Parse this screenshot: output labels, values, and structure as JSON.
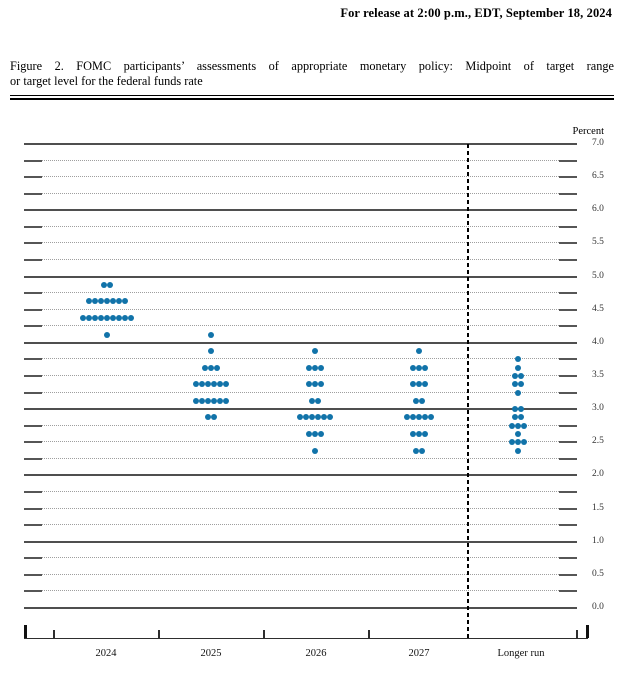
{
  "release_line": "For release at 2:00 p.m., EDT, September 18, 2024",
  "figure_caption": {
    "line1": "Figure 2.  FOMC participants’ assessments of appropriate monetary policy:  Midpoint of target range",
    "line2": "or target level for the federal funds rate"
  },
  "chart_data": {
    "type": "scatter",
    "subtype": "fomc-dot-plot",
    "title": "FOMC participants’ assessments of appropriate monetary policy: Midpoint of target range or target level for the federal funds rate",
    "ylabel": "Percent",
    "ylim": [
      0.0,
      7.0
    ],
    "y_minor_step": 0.25,
    "y_major_step": 1.0,
    "y_label_step": 0.5,
    "y_tick_labels": [
      "7.0",
      "6.5",
      "6.0",
      "5.5",
      "5.0",
      "4.5",
      "4.0",
      "3.5",
      "3.0",
      "2.5",
      "2.0",
      "1.5",
      "1.0",
      "0.5",
      "0.0"
    ],
    "grid": true,
    "legend": "none",
    "dot_color": "#1173a9",
    "categories": [
      "2024",
      "2025",
      "2026",
      "2027",
      "Longer run"
    ],
    "separator_before_category": "Longer run",
    "series": [
      {
        "name": "2024",
        "dots": [
          {
            "value": 4.875,
            "count": 2
          },
          {
            "value": 4.625,
            "count": 7
          },
          {
            "value": 4.375,
            "count": 9
          },
          {
            "value": 4.125,
            "count": 1
          }
        ]
      },
      {
        "name": "2025",
        "dots": [
          {
            "value": 4.125,
            "count": 1
          },
          {
            "value": 3.875,
            "count": 1
          },
          {
            "value": 3.625,
            "count": 3
          },
          {
            "value": 3.375,
            "count": 6
          },
          {
            "value": 3.125,
            "count": 6
          },
          {
            "value": 2.875,
            "count": 2
          }
        ]
      },
      {
        "name": "2026",
        "dots": [
          {
            "value": 3.875,
            "count": 1
          },
          {
            "value": 3.625,
            "count": 3
          },
          {
            "value": 3.375,
            "count": 3
          },
          {
            "value": 3.125,
            "count": 2
          },
          {
            "value": 2.875,
            "count": 6
          },
          {
            "value": 2.625,
            "count": 3
          },
          {
            "value": 2.375,
            "count": 1
          }
        ]
      },
      {
        "name": "2027",
        "dots": [
          {
            "value": 3.875,
            "count": 1
          },
          {
            "value": 3.625,
            "count": 3
          },
          {
            "value": 3.375,
            "count": 3
          },
          {
            "value": 3.125,
            "count": 2
          },
          {
            "value": 2.875,
            "count": 5
          },
          {
            "value": 2.625,
            "count": 3
          },
          {
            "value": 2.375,
            "count": 2
          }
        ]
      },
      {
        "name": "Longer run",
        "dots": [
          {
            "value": 3.75,
            "count": 1
          },
          {
            "value": 3.625,
            "count": 1
          },
          {
            "value": 3.5,
            "count": 2
          },
          {
            "value": 3.375,
            "count": 2
          },
          {
            "value": 3.25,
            "count": 1
          },
          {
            "value": 3.0,
            "count": 2
          },
          {
            "value": 2.875,
            "count": 2
          },
          {
            "value": 2.75,
            "count": 3
          },
          {
            "value": 2.625,
            "count": 1
          },
          {
            "value": 2.5,
            "count": 3
          },
          {
            "value": 2.375,
            "count": 1
          }
        ]
      }
    ]
  }
}
